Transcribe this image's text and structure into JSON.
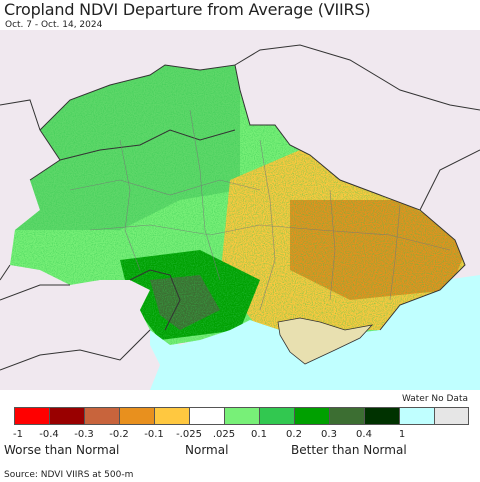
{
  "title": "Cropland NDVI Departure from Average (VIIRS)",
  "subtitle": "Oct. 7 - Oct. 14, 2024",
  "legend": {
    "nodata_label": "Water No Data",
    "colors": [
      "#ff0000",
      "#990000",
      "#c8643c",
      "#e8901e",
      "#ffc840",
      "#ffffff",
      "#78f078",
      "#32c850",
      "#00a000",
      "#3c6e32",
      "#003200",
      "#c0ffff",
      "#e6e6e6"
    ],
    "ticks": [
      "-1",
      "-0.4",
      "-0.3",
      "-0.2",
      "-0.1",
      "-.025",
      ".025",
      "0.1",
      "0.2",
      "0.3",
      "0.4",
      "1"
    ],
    "worse": "Worse than Normal",
    "normal": "Normal",
    "better": "Better than Normal"
  },
  "source": "Source: NDVI VIIRS at 500-m",
  "map_colors": {
    "background": "#f0e8ef",
    "sea": "#c0ffff",
    "green_light": "#78f078",
    "green_mid": "#32c850",
    "green_dark": "#00a000",
    "orange": "#e8901e",
    "yellow": "#ffc840",
    "border": "#333333"
  }
}
